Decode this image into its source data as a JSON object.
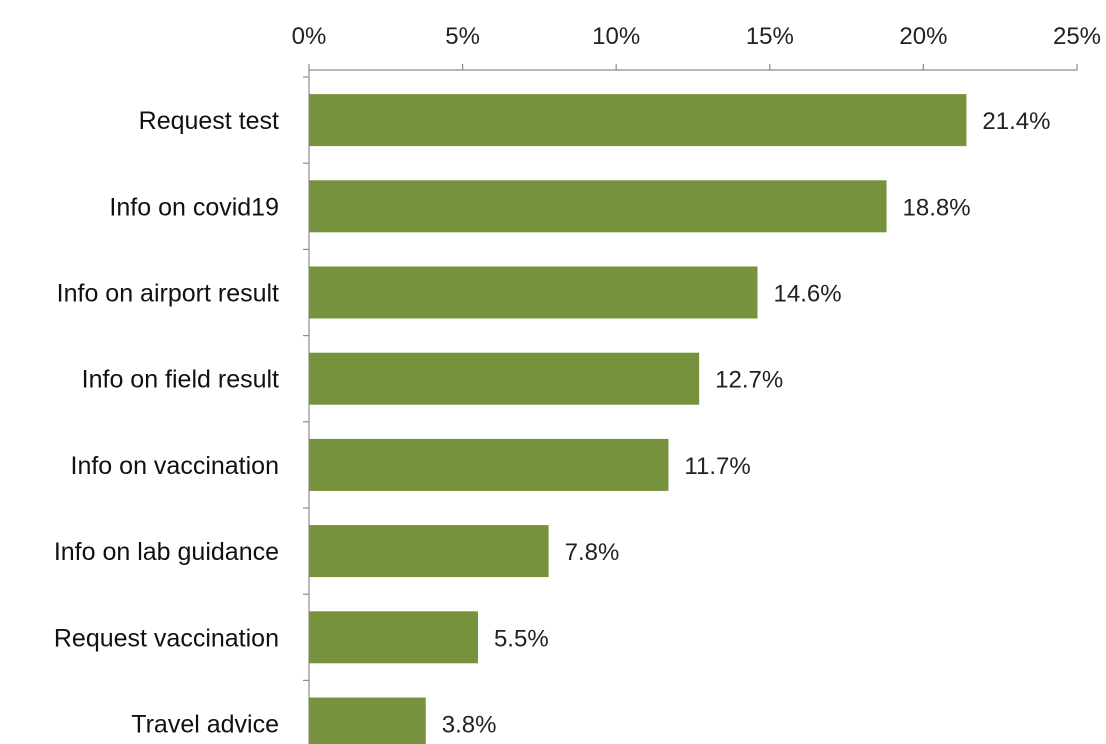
{
  "chart_data": {
    "type": "bar",
    "orientation": "horizontal",
    "categories": [
      "Request test",
      "Info on covid19",
      "Info on airport result",
      "Info on field result",
      "Info on vaccination",
      "Info on lab guidance",
      "Request vaccination",
      "Travel advice"
    ],
    "values": [
      21.4,
      18.8,
      14.6,
      12.7,
      11.7,
      7.8,
      5.5,
      3.8
    ],
    "value_labels": [
      "21.4%",
      "18.8%",
      "14.6%",
      "12.7%",
      "11.7%",
      "7.8%",
      "5.5%",
      "3.8%"
    ],
    "x_ticks": [
      0,
      5,
      10,
      15,
      20,
      25
    ],
    "x_tick_labels": [
      "0%",
      "5%",
      "10%",
      "15%",
      "20%",
      "25%"
    ],
    "xlim": [
      0,
      25
    ],
    "x_axis_position": "top",
    "grid": false,
    "legend": "none",
    "bar_color": "#76923c",
    "title": "",
    "xlabel": "",
    "ylabel": ""
  }
}
